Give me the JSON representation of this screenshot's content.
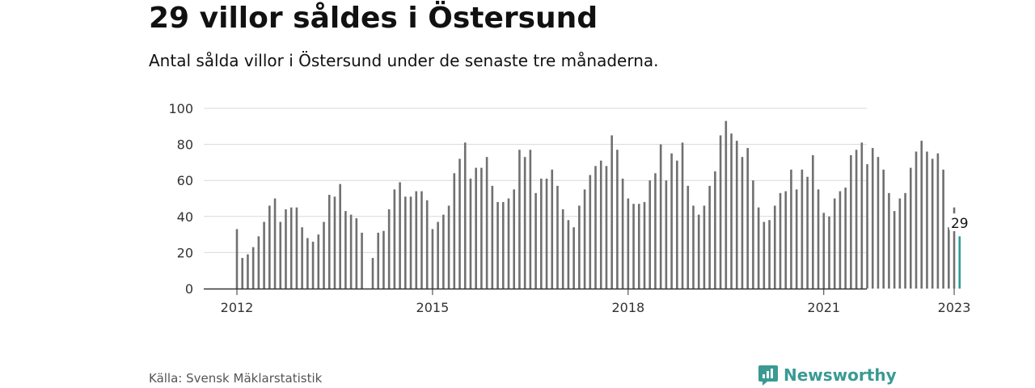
{
  "header": {
    "title": "29 villor såldes i Östersund",
    "subtitle": "Antal sålda villor i Östersund under de senaste tre månaderna."
  },
  "footer": {
    "source": "Källa: Svensk Mäklarstatistik",
    "brand": "Newsworthy",
    "brand_icon": "newsworthy-logo-icon"
  },
  "colors": {
    "bar": "#707070",
    "highlight": "#2a9d99",
    "grid": "#d9d9d9",
    "axis": "#333333"
  },
  "chart_data": {
    "type": "bar",
    "title": "29 villor såldes i Östersund",
    "subtitle": "Antal sålda villor i Östersund under de senaste tre månaderna.",
    "xlabel": "",
    "ylabel": "",
    "ylim": [
      0,
      100
    ],
    "yticks": [
      0,
      20,
      40,
      60,
      80,
      100
    ],
    "x_start": "2012-01",
    "xticks": [
      {
        "label": "2012",
        "month": "2012-01"
      },
      {
        "label": "2015",
        "month": "2015-01"
      },
      {
        "label": "2018",
        "month": "2018-01"
      },
      {
        "label": "2021",
        "month": "2021-01"
      },
      {
        "label": "2023",
        "month": "2023-01"
      }
    ],
    "grid": true,
    "values": [
      33,
      17,
      19,
      23,
      29,
      37,
      46,
      50,
      37,
      44,
      45,
      45,
      34,
      28,
      26,
      30,
      37,
      52,
      51,
      58,
      43,
      41,
      39,
      31,
      null,
      17,
      31,
      32,
      44,
      55,
      59,
      51,
      51,
      54,
      54,
      49,
      33,
      37,
      41,
      46,
      64,
      72,
      81,
      61,
      67,
      67,
      73,
      57,
      48,
      48,
      50,
      55,
      77,
      73,
      77,
      53,
      61,
      61,
      66,
      57,
      44,
      38,
      34,
      46,
      55,
      63,
      68,
      71,
      68,
      85,
      77,
      61,
      50,
      47,
      47,
      48,
      60,
      64,
      80,
      60,
      75,
      71,
      81,
      57,
      46,
      41,
      46,
      57,
      65,
      85,
      93,
      86,
      82,
      73,
      78,
      60,
      45,
      37,
      38,
      46,
      53,
      54,
      66,
      55,
      66,
      62,
      74,
      55,
      42,
      40,
      50,
      54,
      56,
      74,
      77,
      81,
      69,
      78,
      73,
      66,
      53,
      43,
      50,
      53,
      67,
      76,
      82,
      76,
      72,
      75,
      66,
      34,
      45,
      29
    ],
    "highlight_last": true,
    "annotation": {
      "text": "29",
      "index": 133
    }
  }
}
